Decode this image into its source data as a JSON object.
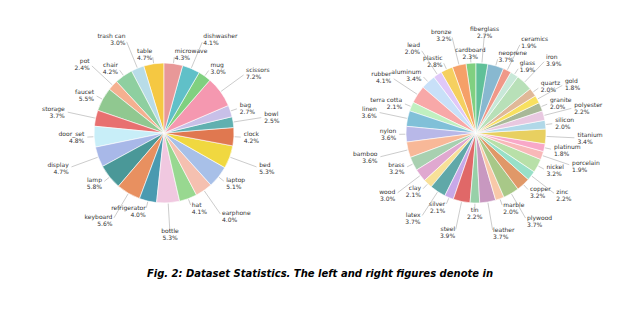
{
  "title": "Fig. 2: Dataset Statistics. The left and right figures denote in",
  "chart_data": [
    {
      "type": "pie",
      "categories": [
        "table",
        "trash can",
        "chair",
        "pot",
        "faucet",
        "storage",
        "door_set",
        "display",
        "lamp",
        "keyboard",
        "refrigerator",
        "bottle",
        "hat",
        "earphone",
        "laptop",
        "bed",
        "clock",
        "bowl",
        "bag",
        "scissors",
        "mug",
        "dishwasher",
        "microwave"
      ],
      "values": [
        4.7,
        3.0,
        4.2,
        2.4,
        5.5,
        3.7,
        4.8,
        4.7,
        5.8,
        5.6,
        4.0,
        5.3,
        4.1,
        4.0,
        5.1,
        5.3,
        4.2,
        2.5,
        2.7,
        7.2,
        3.0,
        4.1,
        4.3
      ],
      "value_labels": [
        "4.7%",
        "3.0%",
        "4.2%",
        "2.4%",
        "5.5%",
        "3.7%",
        "4.8%",
        "4.7%",
        "5.8%",
        "5.6%",
        "4.0%",
        "5.3%",
        "4.1%",
        "4.0%",
        "5.1%",
        "5.3%",
        "4.2%",
        "2.5%",
        "2.7%",
        "7.2%",
        "3.0%",
        "4.1%",
        "4.3%"
      ],
      "colors": [
        "#f5c842",
        "#b8dce8",
        "#8ecfa0",
        "#f5b090",
        "#90c890",
        "#e87070",
        "#c8eef8",
        "#a8b8e8",
        "#4a9898",
        "#e89060",
        "#4a9ab0",
        "#f0c8e0",
        "#98d890",
        "#f5c0b0",
        "#a8c0e8",
        "#f0d840",
        "#e07850",
        "#60b0b0",
        "#c8c0e8",
        "#f598b0",
        "#80d080",
        "#60c0c8",
        "#e89898"
      ],
      "data_labels": true
    },
    {
      "type": "pie",
      "categories": [
        "cardboard",
        "bronze",
        "plastic",
        "lead",
        "aluminum",
        "rubber",
        "terra cotta",
        "linen",
        "nylon",
        "bamboo",
        "brass",
        "wood",
        "clay",
        "latex",
        "silver",
        "steel",
        "tin",
        "leather",
        "marble",
        "plywood",
        "copper",
        "zinc",
        "nickel",
        "porcelain",
        "platinum",
        "titanium",
        "silicon",
        "polyester",
        "granite",
        "gold",
        "quartz",
        "iron",
        "glass",
        "ceramics",
        "neoprene",
        "fiberglass"
      ],
      "values": [
        2.3,
        3.2,
        2.8,
        2.0,
        3.4,
        4.1,
        2.1,
        3.6,
        3.6,
        3.6,
        3.2,
        3.0,
        2.1,
        3.7,
        2.1,
        3.9,
        2.2,
        3.7,
        2.0,
        3.7,
        3.2,
        2.2,
        3.2,
        1.9,
        1.8,
        3.4,
        2.0,
        2.2,
        2.0,
        1.8,
        2.0,
        3.9,
        1.9,
        1.9,
        3.7,
        2.7
      ],
      "value_labels": [
        "2.3%",
        "3.2%",
        "2.8%",
        "2.0%",
        "3.4%",
        "4.1%",
        "2.1%",
        "3.6%",
        "3.6%",
        "3.6%",
        "3.2%",
        "3.0%",
        "2.1%",
        "3.7%",
        "2.1%",
        "3.9%",
        "2.2%",
        "3.7%",
        "2.0%",
        "3.7%",
        "3.2%",
        "2.2%",
        "3.2%",
        "1.9%",
        "1.8%",
        "3.4%",
        "2.0%",
        "2.2%",
        "2.0%",
        "1.8%",
        "2.0%",
        "3.9%",
        "1.9%",
        "1.9%",
        "3.7%",
        "2.7%"
      ],
      "colors": [
        "#80d080",
        "#f5a068",
        "#f5d060",
        "#e0c8f8",
        "#c8e0f8",
        "#f8a8a8",
        "#c0f0c0",
        "#80c0d8",
        "#b8b8e8",
        "#f8b898",
        "#a8d0b0",
        "#e0a8d0",
        "#f8e098",
        "#60a8a8",
        "#c8a8e8",
        "#e06868",
        "#98d0a8",
        "#c898c0",
        "#f8c8a8",
        "#a8c888",
        "#e09868",
        "#98e0c8",
        "#b8e0a8",
        "#f8b8b8",
        "#f8a8c8",
        "#e8d060",
        "#b0d8e8",
        "#e8c8e0",
        "#a8b898",
        "#f8e060",
        "#e0b898",
        "#b8e0b8",
        "#c8e8d8",
        "#f09888",
        "#88b8d0",
        "#60c098"
      ],
      "data_labels": true
    }
  ]
}
